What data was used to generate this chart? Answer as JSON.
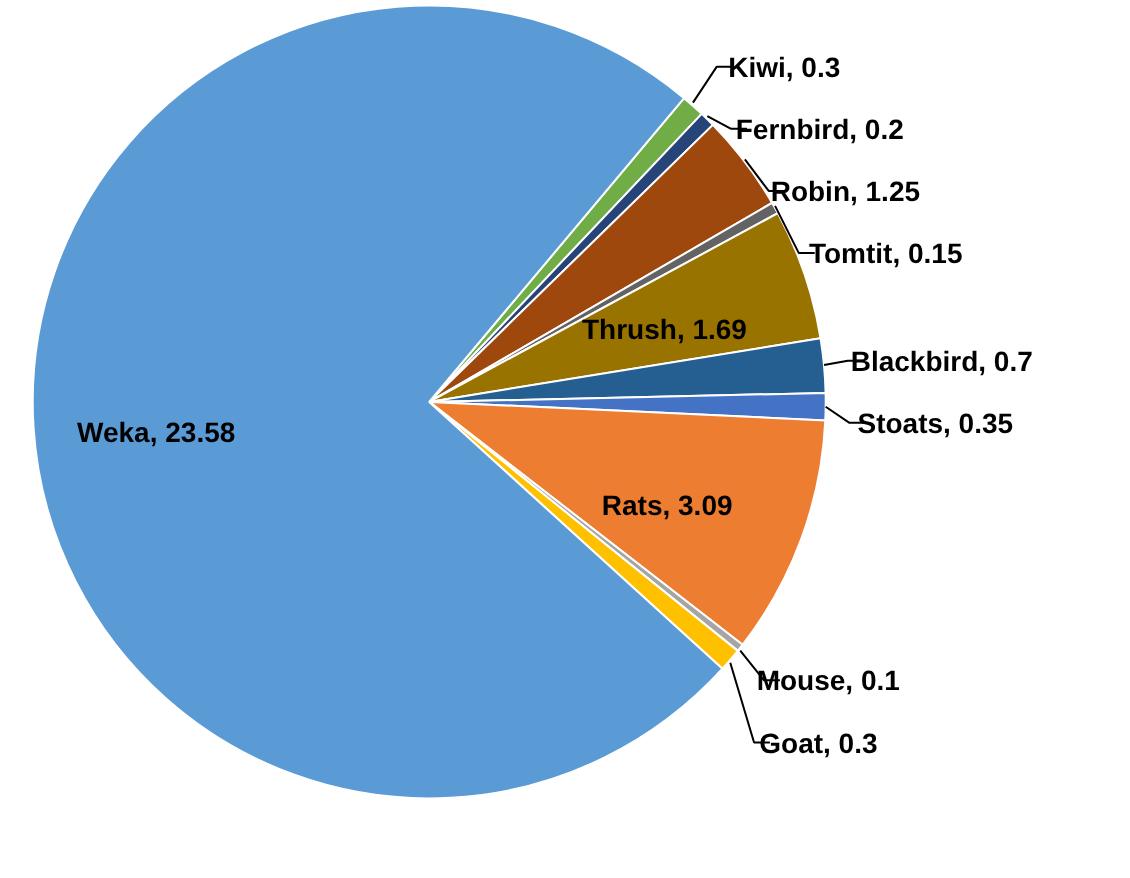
{
  "chart_data": {
    "type": "pie",
    "categories": [
      "Kiwi",
      "Fernbird",
      "Robin",
      "Tomtit",
      "Thrush",
      "Blackbird",
      "Stoats",
      "Rats",
      "Mouse",
      "Goat",
      "Weka"
    ],
    "values": [
      0.3,
      0.2,
      1.25,
      0.15,
      1.69,
      0.7,
      0.35,
      3.09,
      0.1,
      0.3,
      23.58
    ],
    "value_labels": [
      ", 0.3",
      ", 0.2",
      ", 1.25",
      ", 0.15",
      ", 1.69",
      ", 0.7",
      ", 0.35",
      ", 3.09",
      ", 0.1",
      ", 0.3",
      ", 23.58"
    ],
    "colors": [
      "#70ad47",
      "#264478",
      "#9e480e",
      "#636363",
      "#997300",
      "#255e91",
      "#4472c4",
      "#ed7d31",
      "#a5a5a5",
      "#ffc000",
      "#5b9bd5"
    ],
    "legend": false
  }
}
